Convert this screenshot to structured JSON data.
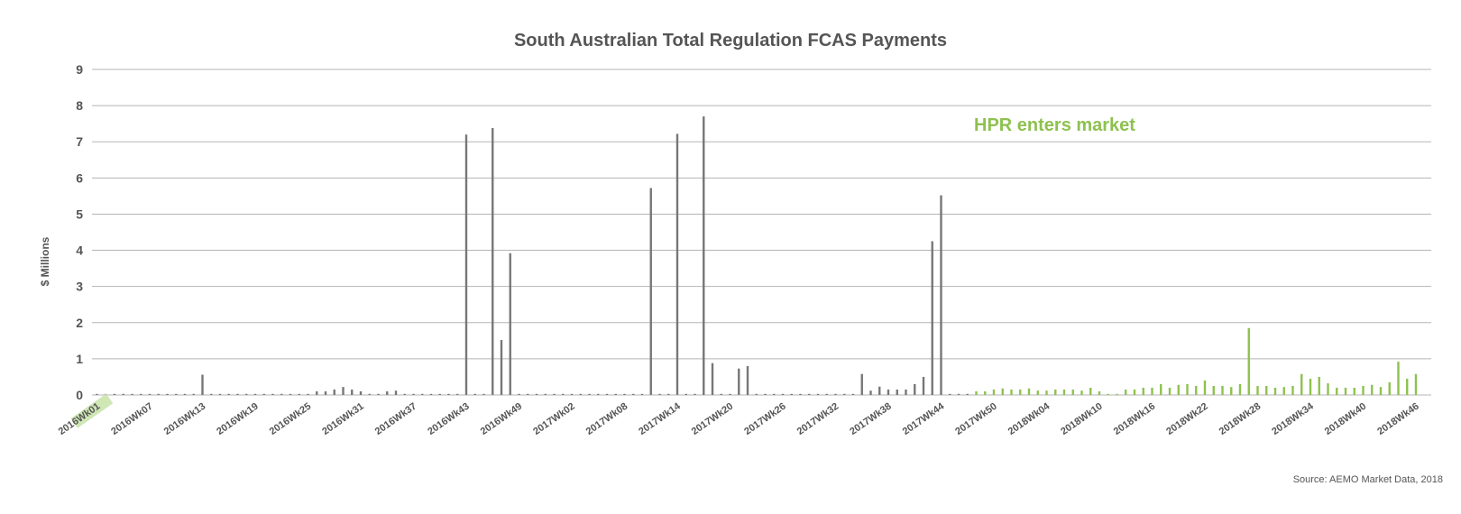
{
  "chart_data": {
    "type": "bar",
    "title": "South Australian Total Regulation FCAS Payments",
    "ylabel": "$ Millions",
    "xlabel": "",
    "ylim": [
      0,
      9
    ],
    "yticks": [
      0,
      1,
      2,
      3,
      4,
      5,
      6,
      7,
      8,
      9
    ],
    "grid": true,
    "source": "Source: AEMO Market Data, 2018",
    "annotation": "HPR enters market",
    "highlighted_category": "2016Wk01",
    "x_tick_labels": [
      "2016Wk01",
      "2016Wk07",
      "2016Wk13",
      "2016Wk19",
      "2016Wk25",
      "2016Wk31",
      "2016Wk37",
      "2016Wk43",
      "2016Wk49",
      "2017Wk02",
      "2017Wk08",
      "2017Wk14",
      "2017Wk20",
      "2017Wk26",
      "2017Wk32",
      "2017Wk38",
      "2017Wk44",
      "2017Wk50",
      "2018Wk04",
      "2018Wk10",
      "2018Wk16",
      "2018Wk22",
      "2018Wk28",
      "2018Wk34",
      "2018Wk40",
      "2018Wk46"
    ],
    "colors": {
      "before_hpr": "#777777",
      "after_hpr": "#8ec14f",
      "grid": "#b5b5b5",
      "highlight_bg": "#cfe6b5"
    },
    "hpr_start_index": 100,
    "values": [
      0.03,
      0.03,
      0.03,
      0.03,
      0.03,
      0.03,
      0.03,
      0.03,
      0.03,
      0.03,
      0.03,
      0.03,
      0.56,
      0.03,
      0.03,
      0.03,
      0.03,
      0.03,
      0.03,
      0.03,
      0.03,
      0.03,
      0.03,
      0.03,
      0.03,
      0.1,
      0.1,
      0.15,
      0.22,
      0.15,
      0.1,
      0.03,
      0.03,
      0.1,
      0.12,
      0.03,
      0.03,
      0.03,
      0.03,
      0.03,
      0.03,
      0.03,
      7.2,
      0.03,
      0.03,
      7.38,
      1.52,
      3.92,
      0.03,
      0.03,
      0.03,
      0.03,
      0.03,
      0.03,
      0.03,
      0.03,
      0.03,
      0.03,
      0.03,
      0.03,
      0.03,
      0.03,
      0.03,
      5.72,
      0.03,
      0.03,
      7.22,
      0.03,
      0.03,
      7.7,
      0.88,
      0.03,
      0.03,
      0.73,
      0.8,
      0.03,
      0.03,
      0.03,
      0.03,
      0.03,
      0.03,
      0.03,
      0.03,
      0.03,
      0.03,
      0.03,
      0.03,
      0.58,
      0.12,
      0.23,
      0.15,
      0.15,
      0.15,
      0.3,
      0.5,
      4.25,
      5.52,
      0.03,
      0.03,
      0.03,
      0.1,
      0.1,
      0.15,
      0.18,
      0.15,
      0.15,
      0.18,
      0.12,
      0.12,
      0.15,
      0.15,
      0.15,
      0.12,
      0.2,
      0.1,
      0.03,
      0.03,
      0.15,
      0.15,
      0.2,
      0.2,
      0.3,
      0.2,
      0.28,
      0.3,
      0.25,
      0.4,
      0.25,
      0.25,
      0.22,
      0.3,
      1.85,
      0.25,
      0.25,
      0.2,
      0.22,
      0.25,
      0.58,
      0.45,
      0.5,
      0.32,
      0.2,
      0.2,
      0.2,
      0.25,
      0.28,
      0.22,
      0.35,
      0.92,
      0.45,
      0.58
    ]
  }
}
